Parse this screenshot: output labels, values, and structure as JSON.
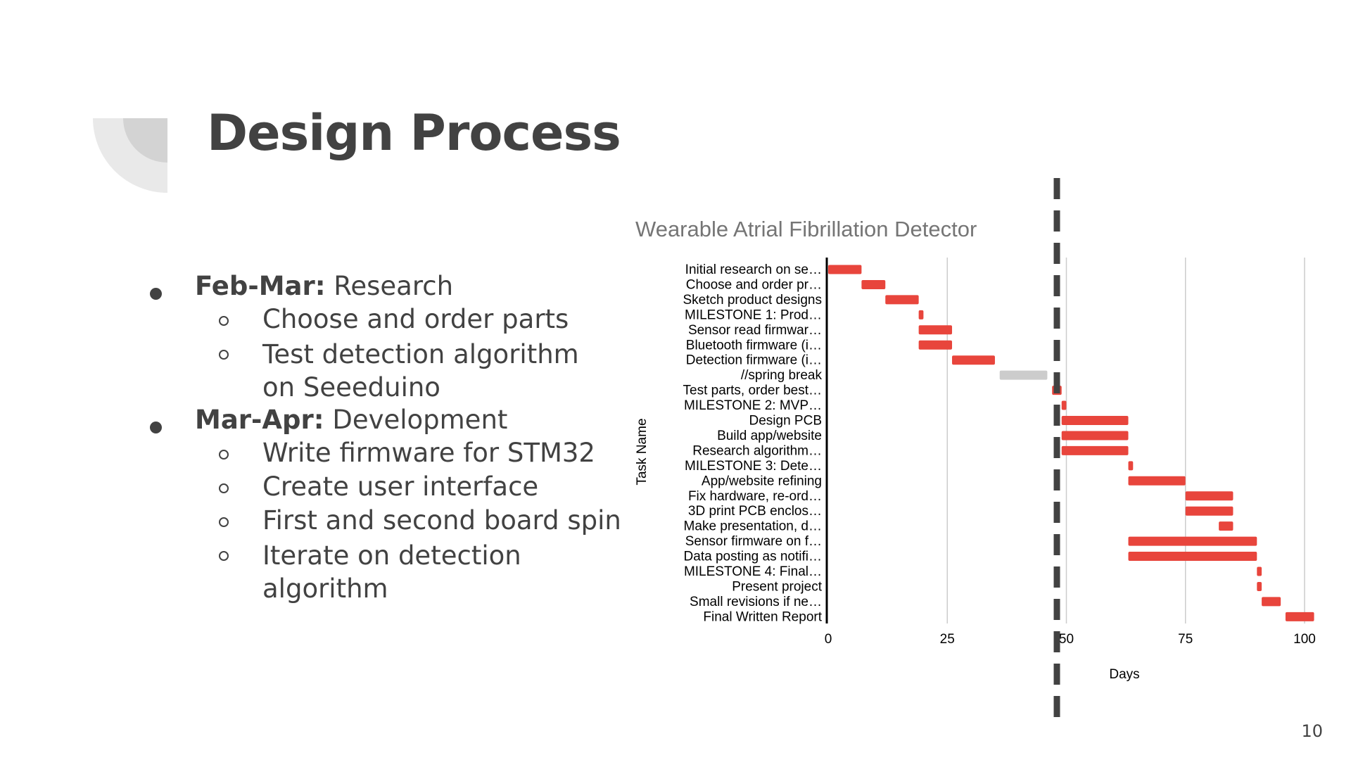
{
  "slide": {
    "title": "Design Process",
    "page_number": "10"
  },
  "bullets": [
    {
      "bold": "Feb-Mar:",
      "text": " Research",
      "children": [
        "Choose and order parts",
        "Test detection algorithm on Seeeduino"
      ]
    },
    {
      "bold": "Mar-Apr:",
      "text": " Development",
      "children": [
        "Write firmware for STM32",
        "Create user interface",
        "First and second board spin",
        "Iterate on detection algorithm"
      ]
    }
  ],
  "colors": {
    "bar": "#e8453c",
    "break_bar": "#cccccc",
    "text": "#424242",
    "title_chart": "#757575",
    "grid": "#cccccc",
    "deco_light": "#e9e9e9",
    "deco_dark": "#d3d3d3"
  },
  "chart_data": {
    "type": "bar",
    "orientation": "horizontal",
    "style": "gantt",
    "title": "Wearable Atrial Fibrillation Detector",
    "xlabel": "Days",
    "ylabel": "Task Name",
    "xlim": [
      0,
      102
    ],
    "xticks": [
      0,
      25,
      50,
      75,
      100
    ],
    "grid": true,
    "marker_line": {
      "style": "dashed",
      "x": 48.5
    },
    "tasks": [
      {
        "name": "Initial research on se…",
        "start": 0,
        "end": 7
      },
      {
        "name": "Choose and order pr…",
        "start": 7,
        "end": 12
      },
      {
        "name": "Sketch product designs",
        "start": 12,
        "end": 19
      },
      {
        "name": "MILESTONE 1: Prod…",
        "start": 19,
        "end": 20
      },
      {
        "name": "Sensor read firmwar…",
        "start": 19,
        "end": 26
      },
      {
        "name": "Bluetooth firmware (i…",
        "start": 19,
        "end": 26
      },
      {
        "name": "Detection firmware (i…",
        "start": 26,
        "end": 35
      },
      {
        "name": "//spring break",
        "start": 36,
        "end": 46,
        "break": true
      },
      {
        "name": "Test parts, order best…",
        "start": 47,
        "end": 49
      },
      {
        "name": "MILESTONE 2: MVP…",
        "start": 49,
        "end": 50
      },
      {
        "name": "Design PCB",
        "start": 49,
        "end": 63
      },
      {
        "name": "Build app/website",
        "start": 49,
        "end": 63
      },
      {
        "name": "Research algorithm…",
        "start": 49,
        "end": 63
      },
      {
        "name": "MILESTONE 3: Dete…",
        "start": 63,
        "end": 64
      },
      {
        "name": "App/website refining",
        "start": 63,
        "end": 75
      },
      {
        "name": "Fix hardware, re-ord…",
        "start": 75,
        "end": 85
      },
      {
        "name": "3D print PCB enclos…",
        "start": 75,
        "end": 85
      },
      {
        "name": "Make presentation, d…",
        "start": 82,
        "end": 85
      },
      {
        "name": "Sensor firmware on f…",
        "start": 63,
        "end": 90
      },
      {
        "name": "Data posting as notifi…",
        "start": 63,
        "end": 90
      },
      {
        "name": "MILESTONE 4: Final…",
        "start": 90,
        "end": 91
      },
      {
        "name": "Present project",
        "start": 90,
        "end": 91
      },
      {
        "name": "Small revisions if ne…",
        "start": 91,
        "end": 95
      },
      {
        "name": "Final Written Report",
        "start": 96,
        "end": 102
      }
    ]
  }
}
